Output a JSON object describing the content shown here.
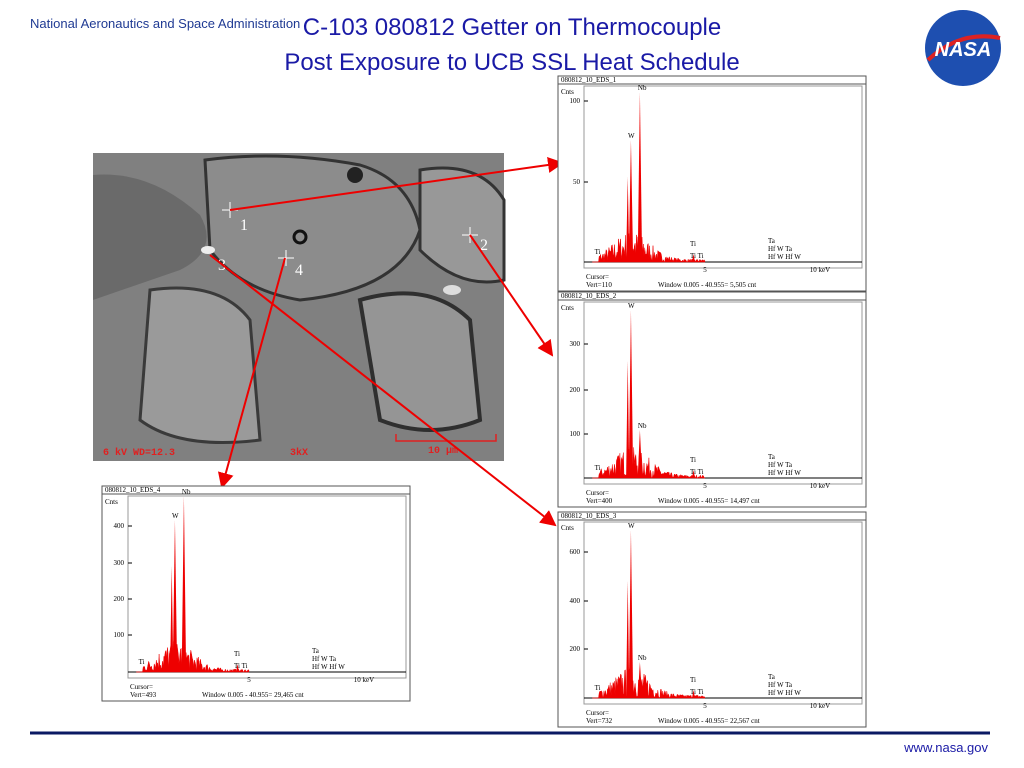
{
  "header": {
    "agency": "National Aeronautics and Space Administration",
    "title_line1": "C-103 080812 Getter on Thermocouple",
    "title_line2": "Post Exposure to UCB SSL Heat Schedule"
  },
  "sem_image": {
    "points": [
      "1",
      "2",
      "3",
      "4"
    ],
    "info": "6 kV  WD=12.3",
    "magnification": "3kX",
    "scale": "10 µm"
  },
  "spectra": [
    {
      "title": "080812_10_EDS_1",
      "y_label": "Cnts",
      "yticks": [
        "100",
        "50"
      ],
      "xticks": [
        "5",
        "10 keV"
      ],
      "peak_labels": [
        "Nb",
        "W",
        "Ti"
      ],
      "cluster_a": [
        "Ti",
        "Ti  Ti"
      ],
      "cluster_b": [
        "Ta",
        "Hf  W     Ta",
        "Hf  W    Hf   W"
      ],
      "cursor": "Cursor=",
      "vert": "Vert=110",
      "window": "Window 0.005 - 40.955=    5,505 cnt"
    },
    {
      "title": "080812_10_EDS_2",
      "y_label": "Cnts",
      "yticks": [
        "300",
        "200",
        "100"
      ],
      "xticks": [
        "5",
        "10 keV"
      ],
      "peak_labels": [
        "Nb",
        "W",
        "Ti"
      ],
      "cluster_a": [
        "Ti",
        "Ti  Ti"
      ],
      "cluster_b": [
        "Ta",
        "Hf  W     Ta",
        "Hf  W    Hf   W"
      ],
      "cursor": "Cursor=",
      "vert": "Vert=400",
      "window": "Window 0.005 - 40.955=    14,497 cnt"
    },
    {
      "title": "080812_10_EDS_3",
      "y_label": "Cnts",
      "yticks": [
        "600",
        "400",
        "200"
      ],
      "xticks": [
        "5",
        "10 keV"
      ],
      "peak_labels": [
        "Nb",
        "W",
        "Ti"
      ],
      "cluster_a": [
        "Ti",
        "Ti  Ti"
      ],
      "cluster_b": [
        "Ta",
        "Hf  W     Ta",
        "Hf  W    Hf   W"
      ],
      "cursor": "Cursor=",
      "vert": "Vert=732",
      "window": "Window 0.005 - 40.955=    22,567 cnt"
    },
    {
      "title": "080812_10_EDS_4",
      "y_label": "Cnts",
      "yticks": [
        "400",
        "300",
        "200",
        "100"
      ],
      "xticks": [
        "5",
        "10 keV"
      ],
      "peak_labels": [
        "Nb",
        "W",
        "Ti"
      ],
      "cluster_a": [
        "Ti",
        "Ti  Ti"
      ],
      "cluster_b": [
        "Ta",
        "Hf  W     Ta",
        "Hf  W    Hf   W"
      ],
      "cursor": "Cursor=",
      "vert": "Vert=493",
      "window": "Window 0.005 - 40.955=    29,465 cnt"
    }
  ],
  "footer": {
    "url": "www.nasa.gov",
    "logo": "NASA"
  }
}
